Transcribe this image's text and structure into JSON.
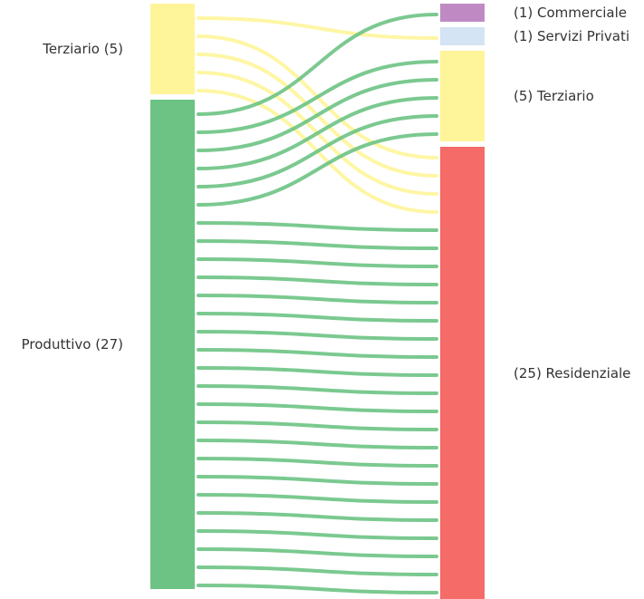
{
  "chart_data": {
    "type": "sankey",
    "sources": [
      {
        "id": "terziario_src",
        "label": "Terziario (5)",
        "value": 5,
        "color": "#fef59a"
      },
      {
        "id": "produttivo",
        "label": "Produttivo (27)",
        "value": 27,
        "color": "#6dc384"
      }
    ],
    "targets": [
      {
        "id": "commerciale",
        "label": "(1) Commerciale",
        "value": 1,
        "color": "#bf8ac4"
      },
      {
        "id": "servizi",
        "label": "(1) Servizi Privati",
        "value": 1,
        "color": "#d4e4f4"
      },
      {
        "id": "terziario_dst",
        "label": "(5) Terziario",
        "value": 5,
        "color": "#fef59a"
      },
      {
        "id": "residenziale",
        "label": "(25) Residenziale",
        "value": 25,
        "color": "#f46b67"
      }
    ],
    "links": [
      {
        "source": "terziario_src",
        "target": "servizi",
        "value": 1
      },
      {
        "source": "terziario_src",
        "target": "residenziale",
        "value": 4
      },
      {
        "source": "produttivo",
        "target": "commerciale",
        "value": 1
      },
      {
        "source": "produttivo",
        "target": "terziario_dst",
        "value": 5
      },
      {
        "source": "produttivo",
        "target": "residenziale",
        "value": 21
      }
    ]
  }
}
